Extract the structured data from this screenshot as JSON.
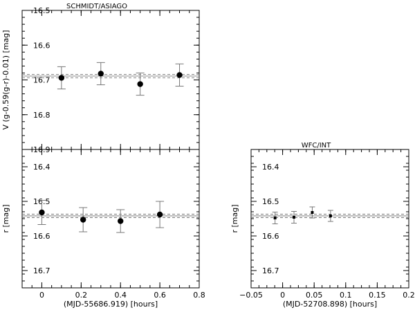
{
  "chart_data": [
    {
      "type": "scatter",
      "panel": "schmidt-V",
      "title": "SCHMIDT/ASIAGO",
      "xlabel": "",
      "ylabel": "V (g-0.59(g-r)-0.01) [mag]",
      "xlim": [
        -0.1,
        0.8
      ],
      "ylim": [
        16.9,
        16.5
      ],
      "y_inverted": true,
      "xticks": [],
      "yticks": [
        "16.5",
        "16.6",
        "16.7",
        "16.8",
        "16.9"
      ],
      "x": [
        0.1,
        0.3,
        0.5,
        0.7
      ],
      "y": [
        16.694,
        16.682,
        16.712,
        16.686
      ],
      "yerr": [
        0.032,
        0.032,
        0.032,
        0.032
      ],
      "reference": {
        "mean": 16.689,
        "band": [
          16.684,
          16.694
        ]
      },
      "marker": "large-filled-circle",
      "grid": false
    },
    {
      "type": "scatter",
      "panel": "schmidt-r",
      "title": "",
      "xlabel": "(MJD-55686.919) [hours]",
      "ylabel": "r [mag]",
      "xlim": [
        -0.1,
        0.8
      ],
      "ylim": [
        16.75,
        16.35
      ],
      "y_inverted": true,
      "xticks": [
        "0",
        "0.2",
        "0.4",
        "0.6",
        "0.8"
      ],
      "yticks": [
        "16.4",
        "16.5",
        "16.6",
        "16.7"
      ],
      "x": [
        0.0,
        0.21,
        0.4,
        0.6
      ],
      "y": [
        16.532,
        16.553,
        16.557,
        16.538
      ],
      "yerr": [
        0.035,
        0.035,
        0.033,
        0.038
      ],
      "reference": {
        "mean": 16.542,
        "band": [
          16.537,
          16.547
        ]
      },
      "marker": "large-filled-circle",
      "grid": false
    },
    {
      "type": "scatter",
      "panel": "wfc-r",
      "title": "WFC/INT",
      "xlabel": "(MJD-52708.898) [hours]",
      "ylabel": "r [mag]",
      "xlim": [
        -0.05,
        0.2
      ],
      "ylim": [
        16.75,
        16.35
      ],
      "y_inverted": true,
      "xticks": [
        "−0.05",
        "0",
        "0.05",
        "0.1",
        "0.15",
        "0.2"
      ],
      "yticks": [
        "16.4",
        "16.5",
        "16.6",
        "16.7"
      ],
      "x": [
        -0.012,
        0.018,
        0.047,
        0.076
      ],
      "y": [
        16.548,
        16.546,
        16.532,
        16.542
      ],
      "yerr": [
        0.017,
        0.017,
        0.016,
        0.016
      ],
      "reference": {
        "mean": 16.542,
        "band": [
          16.537,
          16.547
        ]
      },
      "marker": "small-filled-square",
      "grid": false
    }
  ]
}
